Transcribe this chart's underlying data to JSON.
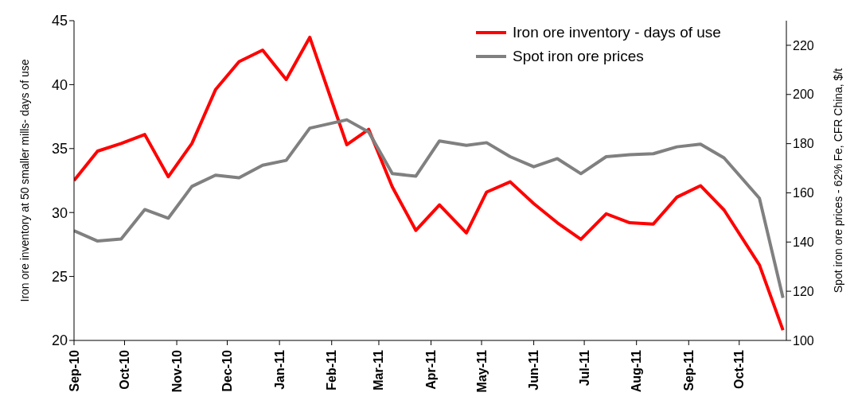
{
  "chart_data": {
    "type": "line",
    "ylabel": "Iron ore inventory at 50 smaller mills- days of use",
    "y2label": "Spot iron ore prices - 62% Fe, CFR China, $/t",
    "x": [
      "2010-09-01",
      "2010-09-15",
      "2010-09-29",
      "2010-10-13",
      "2010-10-27",
      "2010-11-10",
      "2010-11-24",
      "2010-12-08",
      "2010-12-22",
      "2011-01-05",
      "2011-01-19",
      "2011-02-10",
      "2011-02-23",
      "2011-03-09",
      "2011-03-23",
      "2011-04-06",
      "2011-04-22",
      "2011-05-04",
      "2011-05-18",
      "2011-06-01",
      "2011-06-15",
      "2011-06-29",
      "2011-07-14",
      "2011-07-28",
      "2011-08-11",
      "2011-08-25",
      "2011-09-08",
      "2011-09-22",
      "2011-10-13",
      "2011-10-27"
    ],
    "series": [
      {
        "name": "Iron ore inventory - days of use",
        "color": "#ff0000",
        "values": [
          32.5,
          34.8,
          35.4,
          36.1,
          32.8,
          35.4,
          39.6,
          41.8,
          42.7,
          40.4,
          43.7,
          35.3,
          36.5,
          32.0,
          28.6,
          30.6,
          28.4,
          31.6,
          32.4,
          30.7,
          29.2,
          27.9,
          29.9,
          29.2,
          29.1,
          31.2,
          32.1,
          30.2,
          25.9,
          20.8
        ]
      },
      {
        "name": "Spot iron ore prices",
        "color": "#808080",
        "axis": "y2",
        "values": [
          144.6,
          140.4,
          141.2,
          153.2,
          149.7,
          162.6,
          167.2,
          166.1,
          171.2,
          173.2,
          186.3,
          189.7,
          184.7,
          167.8,
          166.8,
          181.1,
          179.3,
          180.4,
          174.7,
          170.6,
          173.9,
          167.8,
          174.7,
          175.5,
          175.9,
          178.7,
          179.8,
          174.2,
          157.8,
          117.3
        ]
      }
    ],
    "xlim": [
      "2010-09-01",
      "2011-10-29"
    ],
    "xticks": [
      {
        "value": "2010-09-01",
        "label": "Sep-10"
      },
      {
        "value": "2010-10-01",
        "label": "Oct-10"
      },
      {
        "value": "2010-11-01",
        "label": "Nov-10"
      },
      {
        "value": "2010-12-01",
        "label": "Dec-10"
      },
      {
        "value": "2011-01-01",
        "label": "Jan-11"
      },
      {
        "value": "2011-02-01",
        "label": "Feb-11"
      },
      {
        "value": "2011-03-01",
        "label": "Mar-11"
      },
      {
        "value": "2011-04-01",
        "label": "Apr-11"
      },
      {
        "value": "2011-05-01",
        "label": "May-11"
      },
      {
        "value": "2011-06-01",
        "label": "Jun-11"
      },
      {
        "value": "2011-07-01",
        "label": "Jul-11"
      },
      {
        "value": "2011-08-01",
        "label": "Aug-11"
      },
      {
        "value": "2011-09-01",
        "label": "Sep-11"
      },
      {
        "value": "2011-10-01",
        "label": "Oct-11"
      }
    ],
    "ylim": [
      20,
      45
    ],
    "yticks": [
      20,
      25,
      30,
      35,
      40,
      45
    ],
    "y2lim": [
      100,
      230
    ],
    "y2ticks": [
      100,
      120,
      140,
      160,
      180,
      200,
      220
    ],
    "grid": false,
    "legend": "top right",
    "marker": "none",
    "line_style": "solid"
  }
}
